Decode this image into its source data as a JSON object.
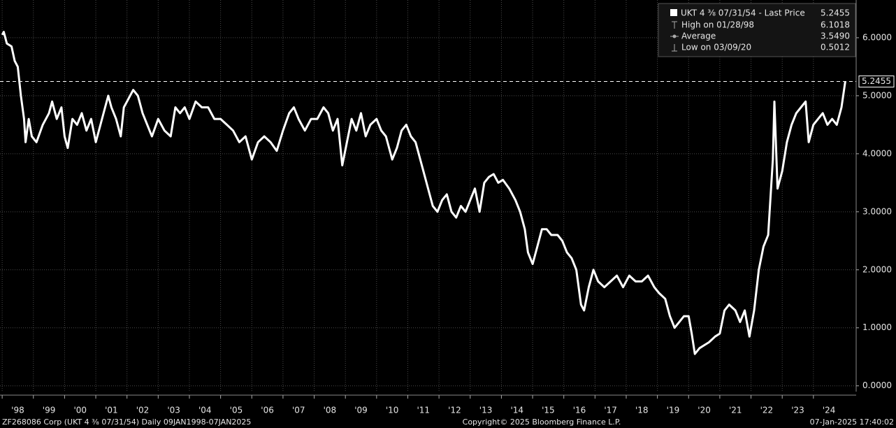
{
  "chart_data": {
    "type": "line",
    "x": [
      1998.0,
      1998.05,
      1998.15,
      1998.3,
      1998.4,
      1998.5,
      1998.6,
      1998.7,
      1998.75,
      1998.85,
      1998.95,
      1999.1,
      1999.3,
      1999.5,
      1999.6,
      1999.75,
      1999.9,
      2000.0,
      2000.1,
      2000.25,
      2000.4,
      2000.55,
      2000.7,
      2000.85,
      2001.0,
      2001.1,
      2001.3,
      2001.4,
      2001.5,
      2001.65,
      2001.8,
      2001.9,
      2002.0,
      2002.2,
      2002.35,
      2002.5,
      2002.65,
      2002.8,
      2003.0,
      2003.2,
      2003.4,
      2003.55,
      2003.7,
      2003.85,
      2004.0,
      2004.2,
      2004.4,
      2004.6,
      2004.8,
      2005.0,
      2005.2,
      2005.4,
      2005.6,
      2005.8,
      2006.0,
      2006.2,
      2006.4,
      2006.6,
      2006.8,
      2007.0,
      2007.2,
      2007.35,
      2007.5,
      2007.7,
      2007.9,
      2008.1,
      2008.3,
      2008.45,
      2008.6,
      2008.75,
      2008.9,
      2009.05,
      2009.2,
      2009.35,
      2009.5,
      2009.65,
      2009.8,
      2010.0,
      2010.15,
      2010.3,
      2010.5,
      2010.65,
      2010.8,
      2010.95,
      2011.1,
      2011.25,
      2011.35,
      2011.5,
      2011.65,
      2011.8,
      2011.95,
      2012.1,
      2012.25,
      2012.4,
      2012.55,
      2012.7,
      2012.85,
      2013.0,
      2013.15,
      2013.3,
      2013.45,
      2013.6,
      2013.75,
      2013.9,
      2014.05,
      2014.25,
      2014.45,
      2014.6,
      2014.75,
      2014.85,
      2015.0,
      2015.15,
      2015.3,
      2015.45,
      2015.6,
      2015.8,
      2015.95,
      2016.1,
      2016.25,
      2016.4,
      2016.55,
      2016.65,
      2016.8,
      2016.95,
      2017.1,
      2017.3,
      2017.5,
      2017.7,
      2017.9,
      2018.1,
      2018.3,
      2018.5,
      2018.7,
      2018.9,
      2019.05,
      2019.25,
      2019.4,
      2019.55,
      2019.7,
      2019.85,
      2020.0,
      2020.1,
      2020.2,
      2020.35,
      2020.5,
      2020.65,
      2020.85,
      2021.0,
      2021.15,
      2021.3,
      2021.5,
      2021.65,
      2021.8,
      2021.95,
      2022.1,
      2022.25,
      2022.4,
      2022.55,
      2022.7,
      2022.75,
      2022.85,
      2023.0,
      2023.15,
      2023.3,
      2023.45,
      2023.6,
      2023.75,
      2023.85,
      2024.0,
      2024.15,
      2024.3,
      2024.45,
      2024.6,
      2024.75,
      2024.9,
      2025.02
    ],
    "series": [
      {
        "name": "UKT 4 ⅜ 07/31/54 - Last Price",
        "color": "#ffffff",
        "values": [
          6.05,
          6.1,
          5.9,
          5.85,
          5.6,
          5.5,
          5.0,
          4.6,
          4.2,
          4.6,
          4.3,
          4.2,
          4.5,
          4.7,
          4.9,
          4.6,
          4.8,
          4.3,
          4.1,
          4.6,
          4.5,
          4.7,
          4.4,
          4.6,
          4.2,
          4.4,
          4.8,
          5.0,
          4.8,
          4.6,
          4.3,
          4.8,
          4.9,
          5.1,
          5.0,
          4.7,
          4.5,
          4.3,
          4.6,
          4.4,
          4.3,
          4.8,
          4.7,
          4.8,
          4.6,
          4.9,
          4.8,
          4.8,
          4.6,
          4.6,
          4.5,
          4.4,
          4.2,
          4.3,
          3.9,
          4.2,
          4.3,
          4.2,
          4.05,
          4.4,
          4.7,
          4.8,
          4.6,
          4.4,
          4.6,
          4.6,
          4.8,
          4.7,
          4.4,
          4.6,
          3.8,
          4.2,
          4.6,
          4.4,
          4.7,
          4.3,
          4.5,
          4.6,
          4.4,
          4.3,
          3.9,
          4.1,
          4.4,
          4.5,
          4.3,
          4.2,
          4.0,
          3.7,
          3.4,
          3.1,
          3.0,
          3.2,
          3.3,
          3.0,
          2.9,
          3.1,
          3.0,
          3.2,
          3.4,
          3.0,
          3.5,
          3.6,
          3.65,
          3.5,
          3.55,
          3.4,
          3.2,
          3.0,
          2.7,
          2.3,
          2.1,
          2.4,
          2.7,
          2.7,
          2.6,
          2.6,
          2.5,
          2.3,
          2.2,
          2.0,
          1.4,
          1.3,
          1.7,
          2.0,
          1.8,
          1.7,
          1.8,
          1.9,
          1.7,
          1.9,
          1.8,
          1.8,
          1.9,
          1.7,
          1.6,
          1.5,
          1.2,
          1.0,
          1.1,
          1.2,
          1.2,
          0.9,
          0.55,
          0.65,
          0.7,
          0.75,
          0.85,
          0.9,
          1.3,
          1.4,
          1.3,
          1.1,
          1.3,
          0.85,
          1.3,
          2.0,
          2.4,
          2.6,
          3.9,
          4.9,
          3.4,
          3.7,
          4.2,
          4.5,
          4.7,
          4.8,
          4.9,
          4.2,
          4.5,
          4.6,
          4.7,
          4.5,
          4.6,
          4.5,
          4.8,
          5.2455
        ]
      }
    ],
    "last_price": 5.2455,
    "legend": {
      "labels": [
        "High on 01/28/98",
        "Average",
        "Low on 03/09/20"
      ],
      "values": [
        6.1018,
        3.549,
        0.5012
      ],
      "value_labels": [
        "6.1018",
        "3.5490",
        "0.5012"
      ]
    },
    "xlim": [
      1997.93,
      2025.37
    ],
    "xticks": [
      {
        "value": 1998,
        "label": "'98"
      },
      {
        "value": 1999,
        "label": "'99"
      },
      {
        "value": 2000,
        "label": "'00"
      },
      {
        "value": 2001,
        "label": "'01"
      },
      {
        "value": 2002,
        "label": "'02"
      },
      {
        "value": 2003,
        "label": "'03"
      },
      {
        "value": 2004,
        "label": "'04"
      },
      {
        "value": 2005,
        "label": "'05"
      },
      {
        "value": 2006,
        "label": "'06"
      },
      {
        "value": 2007,
        "label": "'07"
      },
      {
        "value": 2008,
        "label": "'08"
      },
      {
        "value": 2009,
        "label": "'09"
      },
      {
        "value": 2010,
        "label": "'10"
      },
      {
        "value": 2011,
        "label": "'11"
      },
      {
        "value": 2012,
        "label": "'12"
      },
      {
        "value": 2013,
        "label": "'13"
      },
      {
        "value": 2014,
        "label": "'14"
      },
      {
        "value": 2015,
        "label": "'15"
      },
      {
        "value": 2016,
        "label": "'16"
      },
      {
        "value": 2017,
        "label": "'17"
      },
      {
        "value": 2018,
        "label": "'18"
      },
      {
        "value": 2019,
        "label": "'19"
      },
      {
        "value": 2020,
        "label": "'20"
      },
      {
        "value": 2021,
        "label": "'21"
      },
      {
        "value": 2022,
        "label": "'22"
      },
      {
        "value": 2023,
        "label": "'23"
      },
      {
        "value": 2024,
        "label": "'24"
      }
    ],
    "ylim": [
      -0.1,
      6.65
    ],
    "yticks": [
      {
        "value": 0,
        "label": "0.0000"
      },
      {
        "value": 1,
        "label": "1.0000"
      },
      {
        "value": 2,
        "label": "2.0000"
      },
      {
        "value": 3,
        "label": "3.0000"
      },
      {
        "value": 4,
        "label": "4.0000"
      },
      {
        "value": 5,
        "label": "5.0000"
      },
      {
        "value": 6,
        "label": "6.0000"
      }
    ],
    "grid": true,
    "footer": {
      "source": "ZF268086 Corp (UKT 4 ⅜ 07/31/54)  Daily 09JAN1998-07JAN2025",
      "copyright": "Copyright© 2025 Bloomberg Finance L.P.",
      "timestamp": "07-Jan-2025 17:40:02"
    }
  }
}
